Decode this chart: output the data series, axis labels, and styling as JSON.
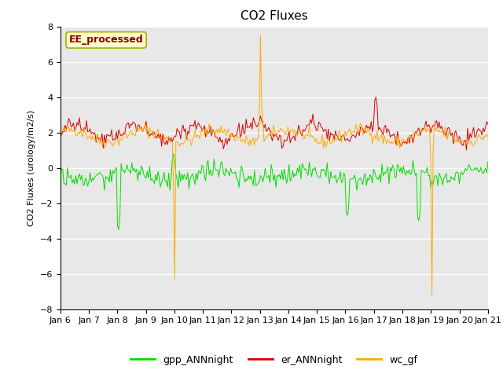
{
  "title": "CO2 Fluxes",
  "ylabel": "CO2 Fluxes (urology/m2/s)",
  "ylim": [
    -8,
    8
  ],
  "yticks": [
    -8,
    -6,
    -4,
    -2,
    0,
    2,
    4,
    6,
    8
  ],
  "xtick_labels": [
    "Jan 6",
    "Jan 7",
    "Jan 8",
    "Jan 9",
    "Jan 10",
    "Jan 11",
    "Jan 12",
    "Jan 13",
    "Jan 14",
    "Jan 15",
    "Jan 16",
    "Jan 17",
    "Jan 18",
    "Jan 19",
    "Jan 20",
    "Jan 21"
  ],
  "colors": {
    "gpp": "#00dd00",
    "er": "#dd0000",
    "wc": "#ffaa00"
  },
  "legend_labels": [
    "gpp_ANNnight",
    "er_ANNnight",
    "wc_gf"
  ],
  "annotation_text": "EE_processed",
  "annotation_bg": "#ffffcc",
  "annotation_border": "#aaaa00",
  "annotation_fg": "#880000",
  "bg_color": "#e8e8e8",
  "title_fontsize": 11,
  "label_fontsize": 8,
  "tick_fontsize": 8,
  "legend_fontsize": 9,
  "n_days": 15,
  "n_per_day": 24,
  "seed": 42
}
